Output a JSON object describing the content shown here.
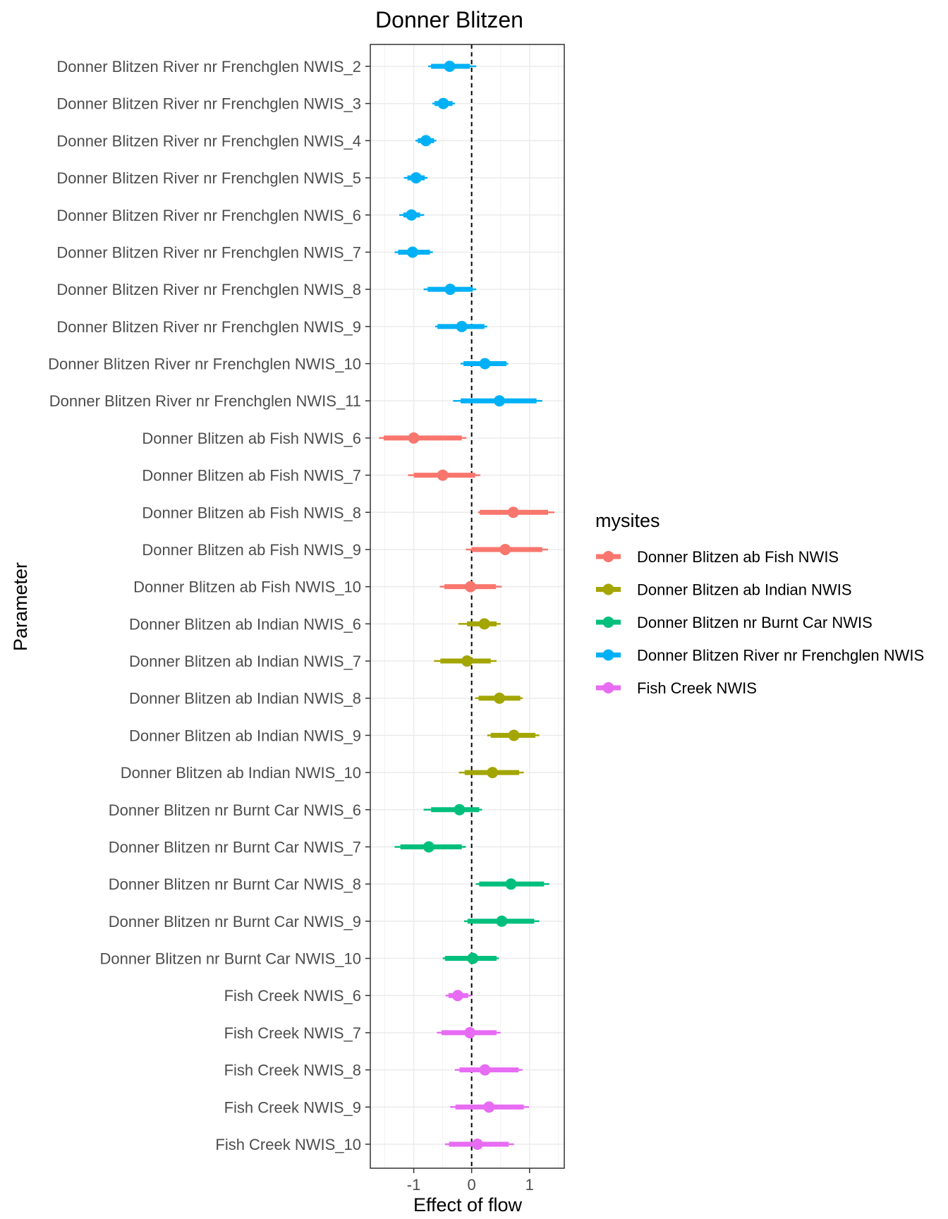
{
  "chart_data": {
    "type": "forest",
    "title": "Donner Blitzen",
    "xlabel": "Effect of flow",
    "ylabel": "Parameter",
    "xlim": [
      -1.75,
      1.6
    ],
    "x_ticks": [
      -1,
      0,
      1
    ],
    "x_tick_labels": [
      "-1",
      "0",
      "1"
    ],
    "reference_line": 0,
    "legend": {
      "title": "mysites",
      "position": "right",
      "entries": [
        {
          "label": "Donner Blitzen ab Fish NWIS",
          "color": "#F8766D"
        },
        {
          "label": "Donner Blitzen ab Indian NWIS",
          "color": "#A3A500"
        },
        {
          "label": "Donner Blitzen nr Burnt Car NWIS",
          "color": "#00BF7D"
        },
        {
          "label": "Donner Blitzen River nr Frenchglen NWIS",
          "color": "#00B0F6"
        },
        {
          "label": "Fish Creek NWIS",
          "color": "#E76BF3"
        }
      ]
    },
    "rows": [
      {
        "label": "Donner Blitzen River nr Frenchglen NWIS_2",
        "site": 3,
        "est": -0.38,
        "in_lo": -0.7,
        "in_hi": -0.03,
        "out_lo": -0.75,
        "out_hi": 0.08
      },
      {
        "label": "Donner Blitzen River nr Frenchglen NWIS_3",
        "site": 3,
        "est": -0.49,
        "in_lo": -0.64,
        "in_hi": -0.33,
        "out_lo": -0.68,
        "out_hi": -0.29
      },
      {
        "label": "Donner Blitzen River nr Frenchglen NWIS_4",
        "site": 3,
        "est": -0.79,
        "in_lo": -0.93,
        "in_hi": -0.65,
        "out_lo": -0.97,
        "out_hi": -0.61
      },
      {
        "label": "Donner Blitzen River nr Frenchglen NWIS_5",
        "site": 3,
        "est": -0.96,
        "in_lo": -1.11,
        "in_hi": -0.81,
        "out_lo": -1.17,
        "out_hi": -0.76
      },
      {
        "label": "Donner Blitzen River nr Frenchglen NWIS_6",
        "site": 3,
        "est": -1.04,
        "in_lo": -1.18,
        "in_hi": -0.89,
        "out_lo": -1.25,
        "out_hi": -0.82
      },
      {
        "label": "Donner Blitzen River nr Frenchglen NWIS_7",
        "site": 3,
        "est": -1.02,
        "in_lo": -1.27,
        "in_hi": -0.72,
        "out_lo": -1.33,
        "out_hi": -0.67
      },
      {
        "label": "Donner Blitzen River nr Frenchglen NWIS_8",
        "site": 3,
        "est": -0.37,
        "in_lo": -0.76,
        "in_hi": 0.02,
        "out_lo": -0.83,
        "out_hi": 0.08
      },
      {
        "label": "Donner Blitzen River nr Frenchglen NWIS_9",
        "site": 3,
        "est": -0.17,
        "in_lo": -0.59,
        "in_hi": 0.22,
        "out_lo": -0.63,
        "out_hi": 0.27
      },
      {
        "label": "Donner Blitzen River nr Frenchglen NWIS_10",
        "site": 3,
        "est": 0.23,
        "in_lo": -0.14,
        "in_hi": 0.6,
        "out_lo": -0.19,
        "out_hi": 0.63
      },
      {
        "label": "Donner Blitzen River nr Frenchglen NWIS_11",
        "site": 3,
        "est": 0.48,
        "in_lo": -0.19,
        "in_hi": 1.12,
        "out_lo": -0.32,
        "out_hi": 1.22
      },
      {
        "label": "Donner Blitzen ab Fish NWIS_6",
        "site": 0,
        "est": -1.0,
        "in_lo": -1.52,
        "in_hi": -0.17,
        "out_lo": -1.6,
        "out_hi": -0.09
      },
      {
        "label": "Donner Blitzen ab Fish NWIS_7",
        "site": 0,
        "est": -0.5,
        "in_lo": -1.0,
        "in_hi": 0.06,
        "out_lo": -1.1,
        "out_hi": 0.15
      },
      {
        "label": "Donner Blitzen ab Fish NWIS_8",
        "site": 0,
        "est": 0.72,
        "in_lo": 0.14,
        "in_hi": 1.32,
        "out_lo": 0.11,
        "out_hi": 1.43
      },
      {
        "label": "Donner Blitzen ab Fish NWIS_9",
        "site": 0,
        "est": 0.58,
        "in_lo": 0.0,
        "in_hi": 1.22,
        "out_lo": -0.1,
        "out_hi": 1.32
      },
      {
        "label": "Donner Blitzen ab Fish NWIS_10",
        "site": 0,
        "est": -0.02,
        "in_lo": -0.47,
        "in_hi": 0.42,
        "out_lo": -0.55,
        "out_hi": 0.52
      },
      {
        "label": "Donner Blitzen ab Indian NWIS_6",
        "site": 1,
        "est": 0.22,
        "in_lo": -0.08,
        "in_hi": 0.43,
        "out_lo": -0.23,
        "out_hi": 0.5
      },
      {
        "label": "Donner Blitzen ab Indian NWIS_7",
        "site": 1,
        "est": -0.08,
        "in_lo": -0.54,
        "in_hi": 0.33,
        "out_lo": -0.65,
        "out_hi": 0.43
      },
      {
        "label": "Donner Blitzen ab Indian NWIS_8",
        "site": 1,
        "est": 0.48,
        "in_lo": 0.12,
        "in_hi": 0.84,
        "out_lo": 0.06,
        "out_hi": 0.88
      },
      {
        "label": "Donner Blitzen ab Indian NWIS_9",
        "site": 1,
        "est": 0.73,
        "in_lo": 0.33,
        "in_hi": 1.1,
        "out_lo": 0.27,
        "out_hi": 1.17
      },
      {
        "label": "Donner Blitzen ab Indian NWIS_10",
        "site": 1,
        "est": 0.36,
        "in_lo": -0.12,
        "in_hi": 0.82,
        "out_lo": -0.22,
        "out_hi": 0.9
      },
      {
        "label": "Donner Blitzen nr Burnt Car NWIS_6",
        "site": 2,
        "est": -0.21,
        "in_lo": -0.7,
        "in_hi": 0.13,
        "out_lo": -0.83,
        "out_hi": 0.18
      },
      {
        "label": "Donner Blitzen nr Burnt Car NWIS_7",
        "site": 2,
        "est": -0.74,
        "in_lo": -1.23,
        "in_hi": -0.17,
        "out_lo": -1.33,
        "out_hi": -0.1
      },
      {
        "label": "Donner Blitzen nr Burnt Car NWIS_8",
        "site": 2,
        "est": 0.68,
        "in_lo": 0.13,
        "in_hi": 1.25,
        "out_lo": 0.07,
        "out_hi": 1.34
      },
      {
        "label": "Donner Blitzen nr Burnt Car NWIS_9",
        "site": 2,
        "est": 0.52,
        "in_lo": -0.07,
        "in_hi": 1.08,
        "out_lo": -0.13,
        "out_hi": 1.17
      },
      {
        "label": "Donner Blitzen nr Burnt Car NWIS_10",
        "site": 2,
        "est": 0.02,
        "in_lo": -0.46,
        "in_hi": 0.43,
        "out_lo": -0.5,
        "out_hi": 0.47
      },
      {
        "label": "Fish Creek NWIS_6",
        "site": 4,
        "est": -0.24,
        "in_lo": -0.4,
        "in_hi": -0.06,
        "out_lo": -0.45,
        "out_hi": -0.01
      },
      {
        "label": "Fish Creek NWIS_7",
        "site": 4,
        "est": -0.03,
        "in_lo": -0.52,
        "in_hi": 0.43,
        "out_lo": -0.6,
        "out_hi": 0.5
      },
      {
        "label": "Fish Creek NWIS_8",
        "site": 4,
        "est": 0.23,
        "in_lo": -0.21,
        "in_hi": 0.81,
        "out_lo": -0.29,
        "out_hi": 0.88
      },
      {
        "label": "Fish Creek NWIS_9",
        "site": 4,
        "est": 0.3,
        "in_lo": -0.28,
        "in_hi": 0.9,
        "out_lo": -0.37,
        "out_hi": 0.99
      },
      {
        "label": "Fish Creek NWIS_10",
        "site": 4,
        "est": 0.1,
        "in_lo": -0.39,
        "in_hi": 0.64,
        "out_lo": -0.46,
        "out_hi": 0.73
      }
    ]
  }
}
